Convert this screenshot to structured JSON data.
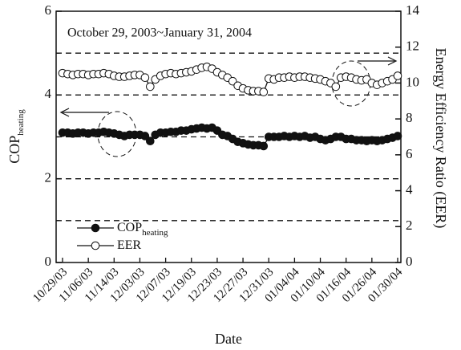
{
  "chart_data": {
    "type": "line",
    "annotation": "October 29, 2003~January 31, 2004",
    "x_label": "Date",
    "y_label": "COP",
    "y_label_sub": "heating",
    "y2_label": "Energy Efficiency Ratio (EER)",
    "categories": [
      "10/29/03",
      null,
      null,
      null,
      null,
      "11/06/03",
      null,
      null,
      null,
      null,
      "11/14/03",
      null,
      null,
      null,
      null,
      "12/03/03",
      null,
      null,
      null,
      null,
      "12/07/03",
      null,
      null,
      null,
      null,
      "12/19/03",
      null,
      null,
      null,
      null,
      "12/23/03",
      null,
      null,
      null,
      null,
      "12/27/03",
      null,
      null,
      null,
      null,
      "12/31/03",
      null,
      null,
      null,
      null,
      "01/04/04",
      null,
      null,
      null,
      null,
      "01/10/04",
      null,
      null,
      null,
      null,
      "01/16/04",
      null,
      null,
      null,
      null,
      "01/26/04",
      null,
      null,
      null,
      null,
      "01/30/04"
    ],
    "series": [
      {
        "name": "COP",
        "name_sub": "heating",
        "color": "#111111",
        "marker": "filled",
        "values": [
          3.1,
          3.1,
          3.08,
          3.1,
          3.1,
          3.08,
          3.1,
          3.1,
          3.12,
          3.1,
          3.08,
          3.05,
          3.02,
          3.05,
          3.05,
          3.05,
          3.02,
          2.9,
          3.05,
          3.1,
          3.1,
          3.12,
          3.12,
          3.15,
          3.15,
          3.18,
          3.2,
          3.22,
          3.2,
          3.22,
          3.15,
          3.05,
          3.02,
          2.95,
          2.88,
          2.85,
          2.82,
          2.8,
          2.8,
          2.78,
          3.0,
          3.0,
          3.0,
          3.02,
          3.0,
          3.02,
          3.0,
          3.02,
          2.98,
          3.0,
          2.95,
          2.92,
          2.95,
          3.0,
          3.0,
          2.95,
          2.95,
          2.92,
          2.92,
          2.9,
          2.92,
          2.9,
          2.92,
          2.95,
          2.98,
          3.02
        ]
      },
      {
        "name": "EER",
        "color": "#111111",
        "marker": "open",
        "axis": "y2",
        "values": [
          10.55,
          10.5,
          10.45,
          10.5,
          10.5,
          10.45,
          10.5,
          10.5,
          10.55,
          10.5,
          10.4,
          10.35,
          10.35,
          10.4,
          10.45,
          10.45,
          10.3,
          9.8,
          10.2,
          10.4,
          10.5,
          10.55,
          10.5,
          10.55,
          10.6,
          10.65,
          10.75,
          10.85,
          10.9,
          10.8,
          10.6,
          10.45,
          10.3,
          10.1,
          9.85,
          9.7,
          9.6,
          9.55,
          9.55,
          9.5,
          10.25,
          10.2,
          10.3,
          10.3,
          10.35,
          10.3,
          10.35,
          10.35,
          10.3,
          10.25,
          10.2,
          10.1,
          10.0,
          9.8,
          10.3,
          10.35,
          10.3,
          10.2,
          10.15,
          10.2,
          10.0,
          9.9,
          10.0,
          10.1,
          10.2,
          10.4
        ]
      }
    ],
    "ylim": [
      0,
      6
    ],
    "yticks": [
      0,
      2,
      4,
      6
    ],
    "y2lim": [
      0,
      14
    ],
    "y2ticks": [
      0,
      2,
      4,
      6,
      8,
      10,
      12,
      14
    ],
    "grid_lines": [
      1,
      2,
      3,
      4,
      5
    ],
    "legend": "lower left"
  }
}
